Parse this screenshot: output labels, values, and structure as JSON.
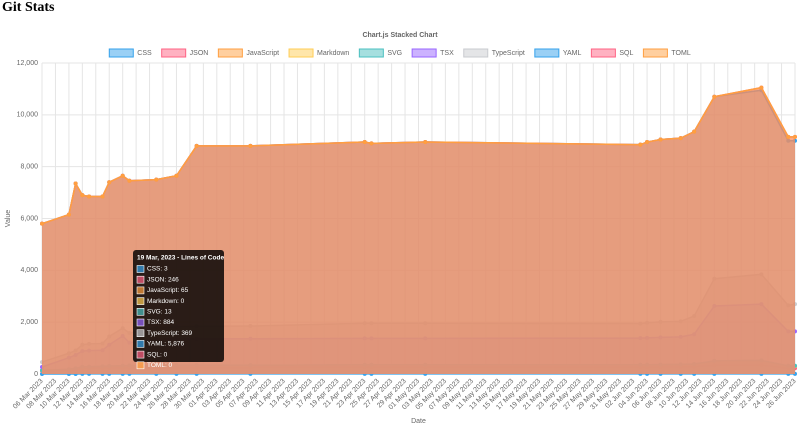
{
  "page_title": "Git Stats",
  "chart_data": {
    "type": "stacked-area",
    "title": "Chart.js Stacked Chart",
    "x_label": "Date",
    "y_label": "Value",
    "x": [
      "06 Mar 2023",
      "10 Mar 2023",
      "11 Mar 2023",
      "12 Mar 2023",
      "13 Mar 2023",
      "15 Mar 2023",
      "16 Mar 2023",
      "18 Mar 2023",
      "19 Mar 2023",
      "23 Mar 2023",
      "26 Mar 2023",
      "29 Mar 2023",
      "06 Apr 2023",
      "23 Apr 2023",
      "24 Apr 2023",
      "02 May 2023",
      "03 Jun 2023",
      "04 Jun 2023",
      "06 Jun 2023",
      "09 Jun 2023",
      "11 Jun 2023",
      "14 Jun 2023",
      "21 Jun 2023",
      "25 Jun 2023",
      "26 Jun 2023"
    ],
    "xlim": [
      "06 Mar 2023",
      "26 Jun 2023"
    ],
    "xticks": [
      "06 Mar 2023",
      "08 Mar 2023",
      "10 Mar 2023",
      "12 Mar 2023",
      "14 Mar 2023",
      "16 Mar 2023",
      "18 Mar 2023",
      "20 Mar 2023",
      "22 Mar 2023",
      "24 Mar 2023",
      "26 Mar 2023",
      "28 Mar 2023",
      "30 Mar 2023",
      "01 Apr 2023",
      "03 Apr 2023",
      "05 Apr 2023",
      "07 Apr 2023",
      "09 Apr 2023",
      "11 Apr 2023",
      "13 Apr 2023",
      "15 Apr 2023",
      "17 Apr 2023",
      "19 Apr 2023",
      "21 Apr 2023",
      "23 Apr 2023",
      "25 Apr 2023",
      "27 Apr 2023",
      "29 Apr 2023",
      "01 May 2023",
      "03 May 2023",
      "05 May 2023",
      "07 May 2023",
      "09 May 2023",
      "11 May 2023",
      "13 May 2023",
      "15 May 2023",
      "17 May 2023",
      "19 May 2023",
      "21 May 2023",
      "23 May 2023",
      "25 May 2023",
      "27 May 2023",
      "29 May 2023",
      "31 May 2023",
      "02 Jun 2023",
      "04 Jun 2023",
      "06 Jun 2023",
      "08 Jun 2023",
      "10 Jun 2023",
      "12 Jun 2023",
      "14 Jun 2023",
      "16 Jun 2023",
      "18 Jun 2023",
      "20 Jun 2023",
      "22 Jun 2023",
      "24 Jun 2023",
      "26 Jun 2023"
    ],
    "ylim": [
      0,
      12000
    ],
    "yticks": [
      0,
      {
        "value": 2000,
        "label": "2,000"
      },
      {
        "value": 4000,
        "label": "4,000"
      },
      {
        "value": 6000,
        "label": "6,000"
      },
      {
        "value": 8000,
        "label": "8,000"
      },
      {
        "value": 10000,
        "label": "10,000"
      },
      {
        "value": 12000,
        "label": "12,000"
      }
    ],
    "grid": true,
    "legend": "top",
    "series": [
      {
        "name": "CSS",
        "color": "#36a2eb",
        "values": [
          0,
          0,
          0,
          3,
          3,
          3,
          3,
          3,
          3,
          3,
          3,
          3,
          3,
          3,
          3,
          3,
          3,
          3,
          3,
          3,
          3,
          3,
          3,
          3,
          3
        ]
      },
      {
        "name": "JSON",
        "color": "#ff6384",
        "values": [
          120,
          150,
          170,
          220,
          220,
          230,
          235,
          240,
          246,
          250,
          250,
          250,
          250,
          260,
          260,
          260,
          260,
          260,
          260,
          270,
          280,
          330,
          340,
          220,
          220
        ]
      },
      {
        "name": "JavaScript",
        "color": "#ff9f40",
        "values": [
          20,
          30,
          40,
          50,
          50,
          55,
          60,
          62,
          65,
          70,
          70,
          75,
          75,
          80,
          80,
          80,
          80,
          80,
          85,
          85,
          90,
          160,
          170,
          80,
          80
        ]
      },
      {
        "name": "Markdown",
        "color": "#ffcd56",
        "values": [
          0,
          0,
          0,
          0,
          0,
          0,
          0,
          0,
          0,
          0,
          0,
          0,
          0,
          0,
          0,
          0,
          0,
          0,
          0,
          0,
          0,
          0,
          0,
          0,
          0
        ]
      },
      {
        "name": "SVG",
        "color": "#4bc0c0",
        "values": [
          0,
          0,
          5,
          8,
          8,
          10,
          10,
          12,
          13,
          13,
          13,
          13,
          13,
          13,
          13,
          13,
          13,
          13,
          13,
          13,
          13,
          13,
          13,
          13,
          13
        ]
      },
      {
        "name": "TSX",
        "color": "#9966ff",
        "values": [
          130,
          450,
          520,
          600,
          620,
          620,
          820,
          1150,
          884,
          1000,
          1020,
          1020,
          1020,
          1020,
          1020,
          1020,
          1030,
          1040,
          1050,
          1060,
          1150,
          2120,
          2170,
          1330,
          1330
        ]
      },
      {
        "name": "TypeScript",
        "color": "#c9cbcf",
        "values": [
          190,
          170,
          170,
          250,
          260,
          260,
          320,
          300,
          369,
          450,
          460,
          480,
          490,
          580,
          580,
          580,
          560,
          580,
          600,
          600,
          700,
          1050,
          1150,
          1000,
          1050
        ]
      },
      {
        "name": "YAML",
        "color": "#36a2eb",
        "values": [
          5340,
          5350,
          6445,
          5769,
          5689,
          5672,
          5952,
          5883,
          5876,
          5714,
          5834,
          6959,
          6949,
          6994,
          6944,
          6994,
          6904,
          6974,
          7039,
          7069,
          7114,
          7024,
          7104,
          6354,
          6304
        ]
      },
      {
        "name": "SQL",
        "color": "#ff6384",
        "values": [
          0,
          0,
          0,
          0,
          0,
          0,
          0,
          0,
          0,
          0,
          0,
          0,
          0,
          0,
          0,
          0,
          0,
          0,
          0,
          0,
          0,
          0,
          100,
          150,
          150
        ]
      },
      {
        "name": "TOML",
        "color": "#ff9f40",
        "values": [
          0,
          0,
          0,
          0,
          0,
          0,
          0,
          0,
          0,
          0,
          0,
          0,
          0,
          0,
          0,
          0,
          0,
          0,
          0,
          0,
          0,
          0,
          0,
          0,
          0
        ]
      }
    ],
    "tooltip": {
      "title": "19 Mar, 2023 - Lines of Code",
      "items": [
        "CSS: 3",
        "JSON: 246",
        "JavaScript: 65",
        "Markdown: 0",
        "SVG: 13",
        "TSX: 884",
        "TypeScript: 369",
        "YAML: 5,876",
        "SQL: 0",
        "TOML: 0"
      ]
    }
  }
}
